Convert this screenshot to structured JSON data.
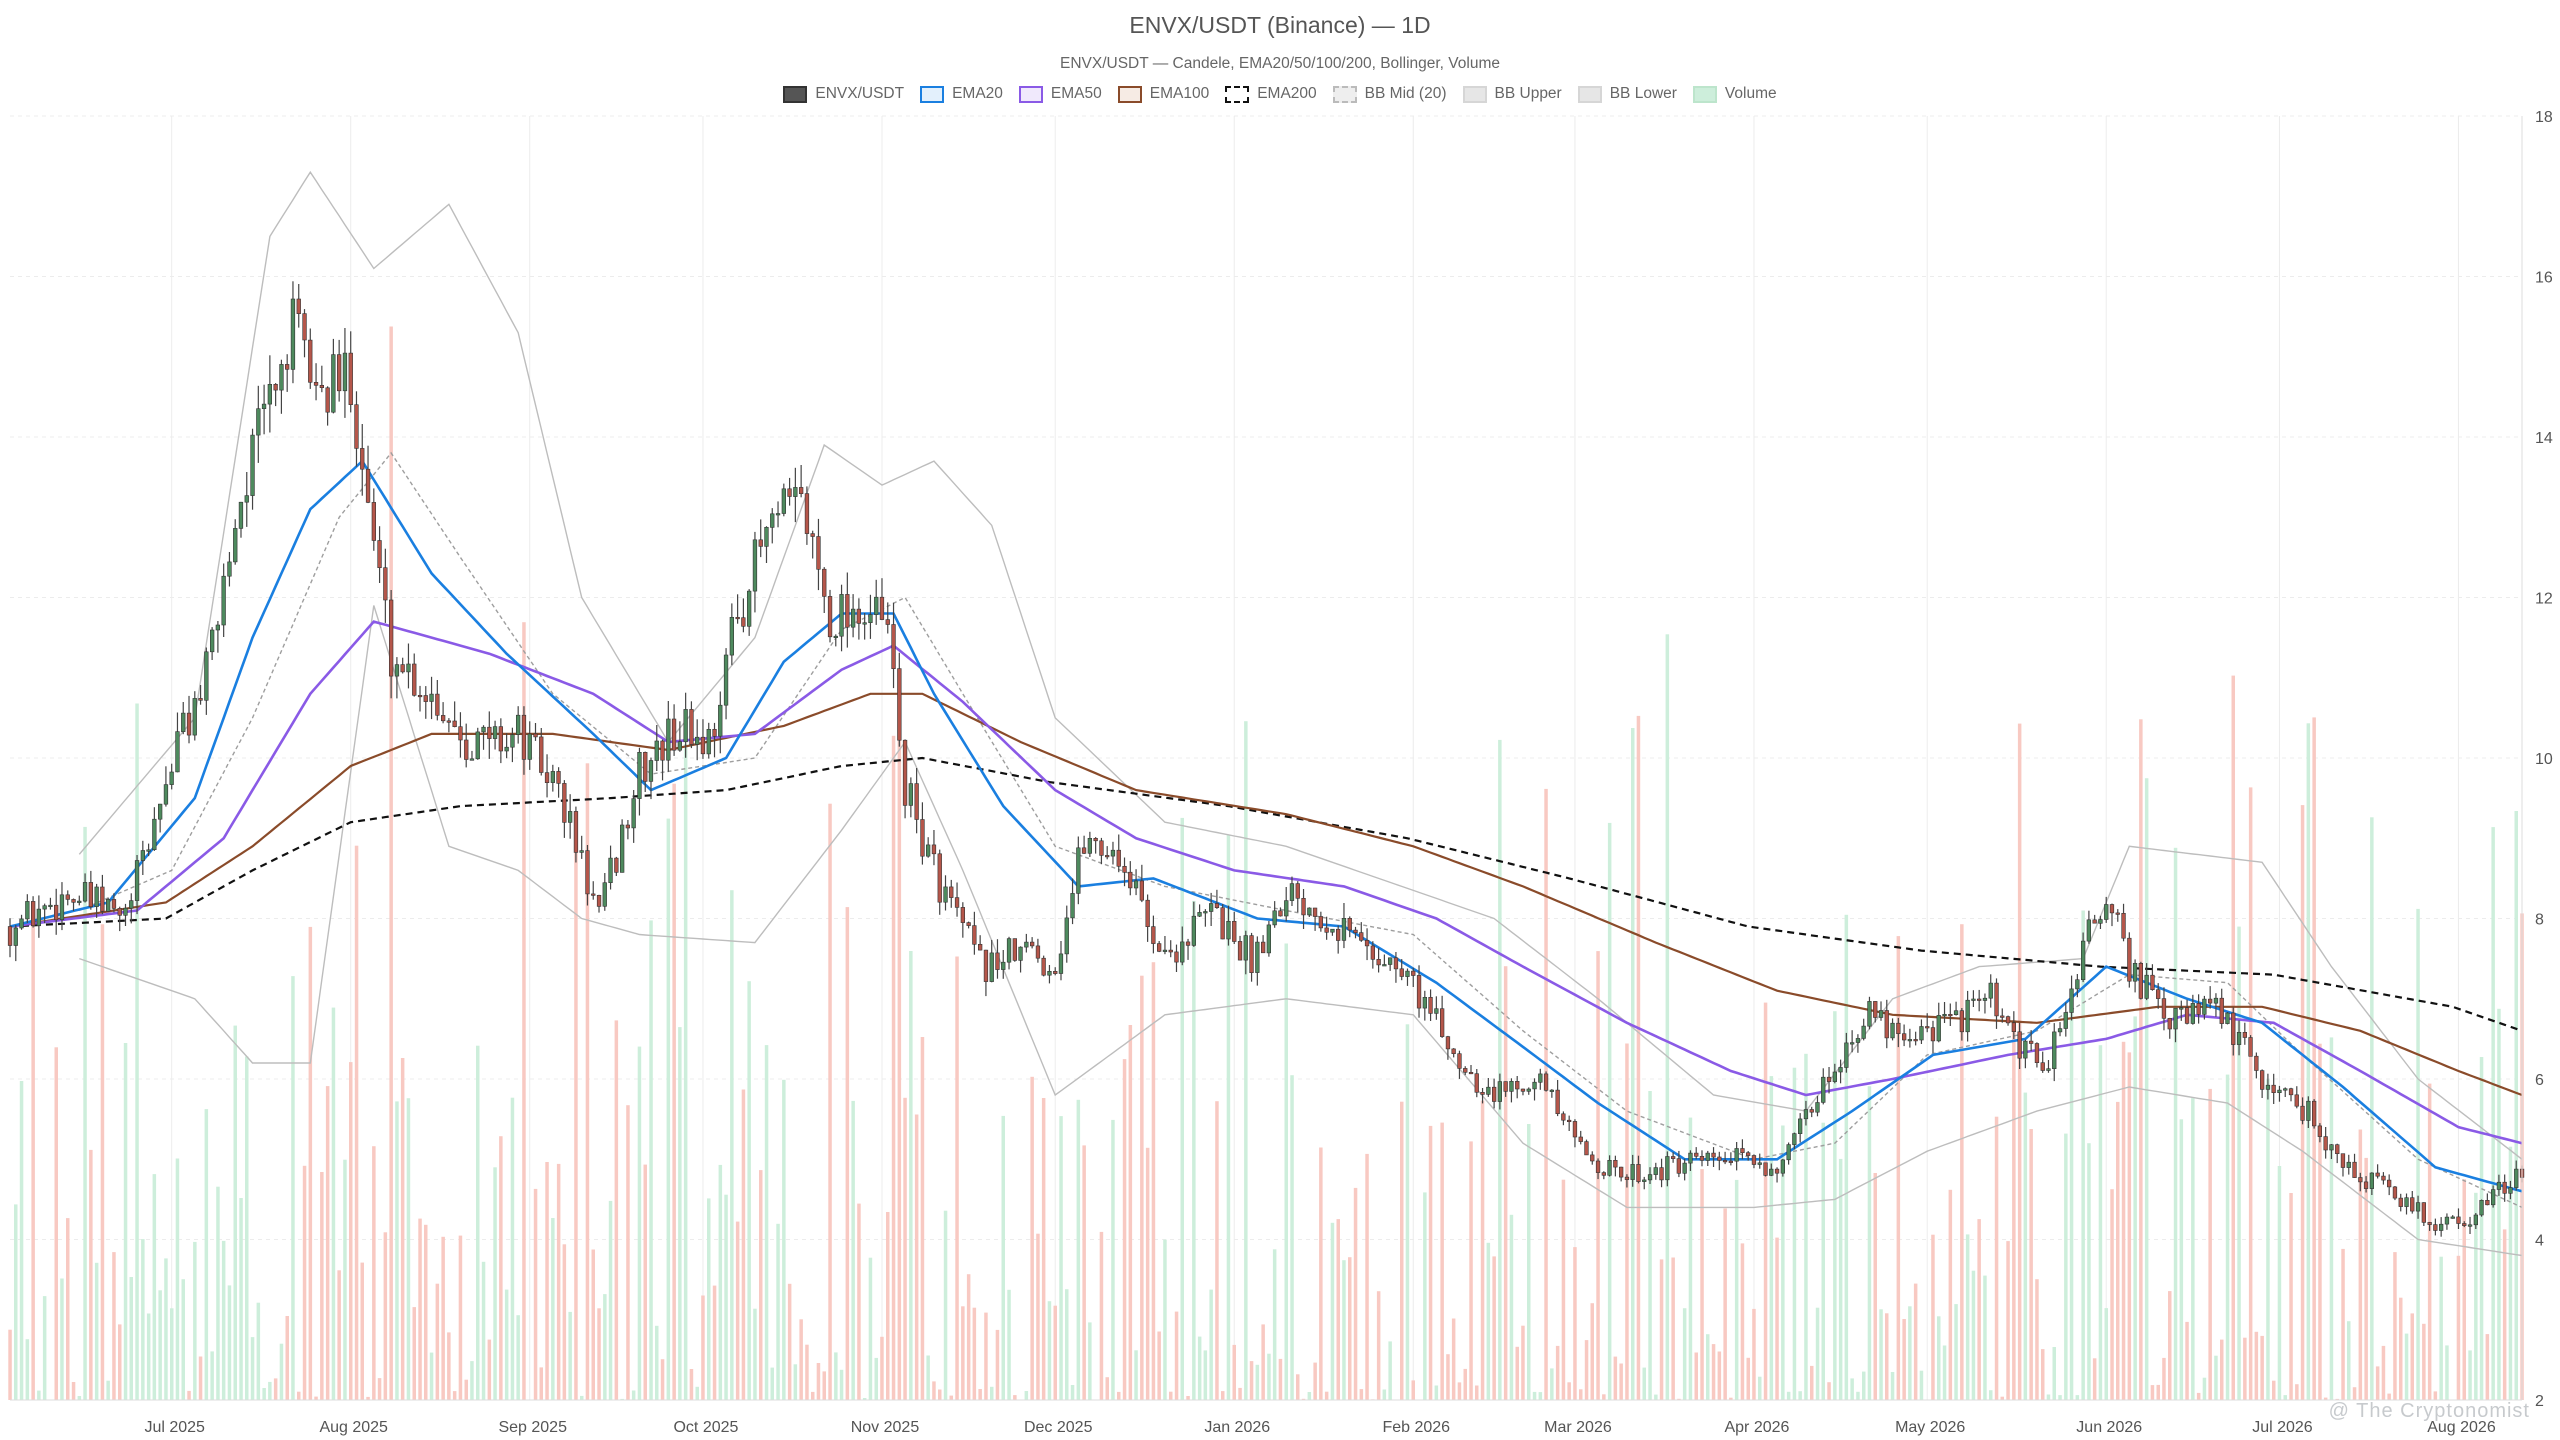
{
  "chart_data": {
    "type": "candlestick",
    "title": "ENVX/USDT (Binance) — 1D",
    "subtitle": "ENVX/USDT — Candele, EMA20/50/100/200, Bollinger, Volume",
    "ylim": [
      2,
      18
    ],
    "y_ticks": [
      "2",
      "4",
      "6",
      "8",
      "10",
      "12",
      "14",
      "16",
      "18"
    ],
    "x_ticks": [
      "Jul 2025",
      "Aug 2025",
      "Sep 2025",
      "Oct 2025",
      "Nov 2025",
      "Dec 2025",
      "Jan 2026",
      "Feb 2026",
      "Mar 2026",
      "Apr 2026",
      "May 2026",
      "Jun 2026",
      "Jul 2026",
      "Aug 2026"
    ],
    "x_range": [
      "2025-06-03",
      "2026-08-12"
    ],
    "grid": true,
    "legend_position": "top-center",
    "legend": [
      {
        "key": "candles",
        "label": "ENVX/USDT"
      },
      {
        "key": "ema20",
        "label": "EMA20"
      },
      {
        "key": "ema50",
        "label": "EMA50"
      },
      {
        "key": "ema100",
        "label": "EMA100"
      },
      {
        "key": "ema200",
        "label": "EMA200"
      },
      {
        "key": "bbmid",
        "label": "BB Mid (20)"
      },
      {
        "key": "bbup",
        "label": "BB Upper"
      },
      {
        "key": "bblow",
        "label": "BB Lower"
      },
      {
        "key": "volume",
        "label": "Volume"
      }
    ],
    "colors": {
      "up": "#4e8a5e",
      "down": "#b5564a",
      "ema20": "#1a7fe0",
      "ema50": "#8a5ae6",
      "ema100": "#8a4b2a",
      "ema200": "#111111",
      "bb": "#bdbdbd",
      "bbmid": "#9e9e9e",
      "vol_up": "#cdeedb",
      "vol_down": "#f8c9c2"
    },
    "price_anchors": [
      [
        "2025-06-03",
        7.9
      ],
      [
        "2025-06-13",
        8.3
      ],
      [
        "2025-06-23",
        8.0
      ],
      [
        "2025-06-28",
        9.2
      ],
      [
        "2025-07-02",
        10.2
      ],
      [
        "2025-07-07",
        11.0
      ],
      [
        "2025-07-12",
        13.0
      ],
      [
        "2025-07-17",
        14.3
      ],
      [
        "2025-07-22",
        15.3
      ],
      [
        "2025-07-27",
        14.5
      ],
      [
        "2025-08-01",
        14.8
      ],
      [
        "2025-08-04",
        13.2
      ],
      [
        "2025-08-08",
        11.3
      ],
      [
        "2025-08-15",
        10.8
      ],
      [
        "2025-08-22",
        10.2
      ],
      [
        "2025-08-30",
        10.3
      ],
      [
        "2025-09-06",
        9.6
      ],
      [
        "2025-09-13",
        8.0
      ],
      [
        "2025-09-20",
        9.8
      ],
      [
        "2025-09-27",
        10.4
      ],
      [
        "2025-10-02",
        10.2
      ],
      [
        "2025-10-07",
        11.8
      ],
      [
        "2025-10-12",
        12.8
      ],
      [
        "2025-10-18",
        13.2
      ],
      [
        "2025-10-23",
        11.8
      ],
      [
        "2025-10-28",
        11.9
      ],
      [
        "2025-11-02",
        11.6
      ],
      [
        "2025-11-05",
        9.6
      ],
      [
        "2025-11-10",
        8.6
      ],
      [
        "2025-11-18",
        7.4
      ],
      [
        "2025-11-26",
        7.6
      ],
      [
        "2025-12-01",
        7.4
      ],
      [
        "2025-12-06",
        9.0
      ],
      [
        "2025-12-12",
        8.8
      ],
      [
        "2025-12-20",
        7.5
      ],
      [
        "2025-12-28",
        8.1
      ],
      [
        "2026-01-04",
        7.5
      ],
      [
        "2026-01-10",
        8.4
      ],
      [
        "2026-01-18",
        8.0
      ],
      [
        "2026-01-25",
        7.6
      ],
      [
        "2026-02-01",
        7.2
      ],
      [
        "2026-02-08",
        6.3
      ],
      [
        "2026-02-15",
        5.8
      ],
      [
        "2026-02-22",
        6.1
      ],
      [
        "2026-03-01",
        5.2
      ],
      [
        "2026-03-08",
        4.8
      ],
      [
        "2026-03-18",
        4.9
      ],
      [
        "2026-03-28",
        5.0
      ],
      [
        "2026-04-06",
        4.9
      ],
      [
        "2026-04-12",
        5.8
      ],
      [
        "2026-04-20",
        6.8
      ],
      [
        "2026-04-28",
        6.6
      ],
      [
        "2026-05-05",
        6.7
      ],
      [
        "2026-05-12",
        7.0
      ],
      [
        "2026-05-16",
        6.4
      ],
      [
        "2026-05-22",
        6.2
      ],
      [
        "2026-05-28",
        7.6
      ],
      [
        "2026-06-01",
        8.3
      ],
      [
        "2026-06-05",
        7.4
      ],
      [
        "2026-06-12",
        6.7
      ],
      [
        "2026-06-20",
        6.9
      ],
      [
        "2026-06-28",
        6.0
      ],
      [
        "2026-07-06",
        5.6
      ],
      [
        "2026-07-12",
        4.9
      ],
      [
        "2026-07-20",
        4.6
      ],
      [
        "2026-07-28",
        4.2
      ],
      [
        "2026-08-04",
        4.3
      ],
      [
        "2026-08-12",
        4.9
      ]
    ],
    "ema20": [
      [
        "2025-06-03",
        7.9
      ],
      [
        "2025-06-20",
        8.2
      ],
      [
        "2025-07-05",
        9.5
      ],
      [
        "2025-07-15",
        11.5
      ],
      [
        "2025-07-25",
        13.1
      ],
      [
        "2025-08-03",
        13.7
      ],
      [
        "2025-08-15",
        12.3
      ],
      [
        "2025-08-28",
        11.3
      ],
      [
        "2025-09-12",
        10.3
      ],
      [
        "2025-09-22",
        9.6
      ],
      [
        "2025-10-05",
        10.0
      ],
      [
        "2025-10-15",
        11.2
      ],
      [
        "2025-10-25",
        11.8
      ],
      [
        "2025-11-03",
        11.8
      ],
      [
        "2025-11-10",
        10.8
      ],
      [
        "2025-11-22",
        9.4
      ],
      [
        "2025-12-05",
        8.4
      ],
      [
        "2025-12-18",
        8.5
      ],
      [
        "2026-01-05",
        8.0
      ],
      [
        "2026-01-20",
        7.9
      ],
      [
        "2026-02-05",
        7.2
      ],
      [
        "2026-02-20",
        6.4
      ],
      [
        "2026-03-05",
        5.7
      ],
      [
        "2026-03-20",
        5.0
      ],
      [
        "2026-04-05",
        5.0
      ],
      [
        "2026-04-18",
        5.6
      ],
      [
        "2026-05-02",
        6.3
      ],
      [
        "2026-05-18",
        6.5
      ],
      [
        "2026-06-01",
        7.4
      ],
      [
        "2026-06-15",
        7.0
      ],
      [
        "2026-06-28",
        6.7
      ],
      [
        "2026-07-12",
        5.9
      ],
      [
        "2026-07-28",
        4.9
      ],
      [
        "2026-08-12",
        4.6
      ]
    ],
    "ema50": [
      [
        "2025-06-03",
        7.9
      ],
      [
        "2025-06-25",
        8.1
      ],
      [
        "2025-07-10",
        9.0
      ],
      [
        "2025-07-25",
        10.8
      ],
      [
        "2025-08-05",
        11.7
      ],
      [
        "2025-08-25",
        11.3
      ],
      [
        "2025-09-12",
        10.8
      ],
      [
        "2025-09-25",
        10.2
      ],
      [
        "2025-10-10",
        10.3
      ],
      [
        "2025-10-25",
        11.1
      ],
      [
        "2025-11-03",
        11.4
      ],
      [
        "2025-11-15",
        10.7
      ],
      [
        "2025-12-01",
        9.6
      ],
      [
        "2025-12-15",
        9.0
      ],
      [
        "2026-01-01",
        8.6
      ],
      [
        "2026-01-20",
        8.4
      ],
      [
        "2026-02-05",
        8.0
      ],
      [
        "2026-02-20",
        7.4
      ],
      [
        "2026-03-10",
        6.7
      ],
      [
        "2026-03-28",
        6.1
      ],
      [
        "2026-04-10",
        5.8
      ],
      [
        "2026-04-25",
        6.0
      ],
      [
        "2026-05-15",
        6.3
      ],
      [
        "2026-06-01",
        6.5
      ],
      [
        "2026-06-15",
        6.8
      ],
      [
        "2026-06-30",
        6.7
      ],
      [
        "2026-07-15",
        6.1
      ],
      [
        "2026-08-01",
        5.4
      ],
      [
        "2026-08-12",
        5.2
      ]
    ],
    "ema100": [
      [
        "2025-06-03",
        7.9
      ],
      [
        "2025-06-30",
        8.2
      ],
      [
        "2025-07-15",
        8.9
      ],
      [
        "2025-08-01",
        9.9
      ],
      [
        "2025-08-15",
        10.3
      ],
      [
        "2025-09-05",
        10.3
      ],
      [
        "2025-09-25",
        10.1
      ],
      [
        "2025-10-15",
        10.4
      ],
      [
        "2025-10-30",
        10.8
      ],
      [
        "2025-11-08",
        10.8
      ],
      [
        "2025-11-25",
        10.2
      ],
      [
        "2025-12-15",
        9.6
      ],
      [
        "2026-01-10",
        9.3
      ],
      [
        "2026-02-01",
        8.9
      ],
      [
        "2026-02-20",
        8.4
      ],
      [
        "2026-03-15",
        7.7
      ],
      [
        "2026-04-05",
        7.1
      ],
      [
        "2026-04-25",
        6.8
      ],
      [
        "2026-05-20",
        6.7
      ],
      [
        "2026-06-10",
        6.9
      ],
      [
        "2026-06-28",
        6.9
      ],
      [
        "2026-07-15",
        6.6
      ],
      [
        "2026-08-01",
        6.1
      ],
      [
        "2026-08-12",
        5.8
      ]
    ],
    "ema200": [
      [
        "2025-06-03",
        7.9
      ],
      [
        "2025-06-30",
        8.0
      ],
      [
        "2025-07-15",
        8.6
      ],
      [
        "2025-08-01",
        9.2
      ],
      [
        "2025-08-20",
        9.4
      ],
      [
        "2025-09-15",
        9.5
      ],
      [
        "2025-10-05",
        9.6
      ],
      [
        "2025-10-25",
        9.9
      ],
      [
        "2025-11-08",
        10.0
      ],
      [
        "2025-11-30",
        9.7
      ],
      [
        "2025-12-31",
        9.4
      ],
      [
        "2026-01-31",
        9.0
      ],
      [
        "2026-02-28",
        8.5
      ],
      [
        "2026-03-31",
        7.9
      ],
      [
        "2026-04-30",
        7.6
      ],
      [
        "2026-05-31",
        7.4
      ],
      [
        "2026-06-30",
        7.3
      ],
      [
        "2026-07-31",
        6.9
      ],
      [
        "2026-08-12",
        6.6
      ]
    ],
    "bb_mid": [
      [
        "2025-06-15",
        8.1
      ],
      [
        "2025-07-01",
        8.6
      ],
      [
        "2025-07-15",
        10.5
      ],
      [
        "2025-07-30",
        13.0
      ],
      [
        "2025-08-08",
        13.8
      ],
      [
        "2025-08-20",
        12.5
      ],
      [
        "2025-09-05",
        10.8
      ],
      [
        "2025-09-22",
        9.8
      ],
      [
        "2025-10-10",
        10.0
      ],
      [
        "2025-10-25",
        11.6
      ],
      [
        "2025-11-05",
        12.0
      ],
      [
        "2025-11-15",
        10.8
      ],
      [
        "2025-12-01",
        8.9
      ],
      [
        "2025-12-20",
        8.4
      ],
      [
        "2026-01-10",
        8.1
      ],
      [
        "2026-02-01",
        7.8
      ],
      [
        "2026-02-20",
        6.6
      ],
      [
        "2026-03-10",
        5.6
      ],
      [
        "2026-04-01",
        5.0
      ],
      [
        "2026-04-15",
        5.2
      ],
      [
        "2026-05-01",
        6.3
      ],
      [
        "2026-05-20",
        6.6
      ],
      [
        "2026-06-05",
        7.3
      ],
      [
        "2026-06-22",
        7.2
      ],
      [
        "2026-07-05",
        6.3
      ],
      [
        "2026-07-25",
        5.0
      ],
      [
        "2026-08-12",
        4.4
      ]
    ],
    "bb_upper": [
      [
        "2025-06-15",
        8.8
      ],
      [
        "2025-07-05",
        10.5
      ],
      [
        "2025-07-18",
        16.5
      ],
      [
        "2025-07-25",
        17.3
      ],
      [
        "2025-08-05",
        16.1
      ],
      [
        "2025-08-18",
        16.9
      ],
      [
        "2025-08-30",
        15.3
      ],
      [
        "2025-09-10",
        12.0
      ],
      [
        "2025-09-25",
        10.2
      ],
      [
        "2025-10-10",
        11.5
      ],
      [
        "2025-10-22",
        13.9
      ],
      [
        "2025-11-01",
        13.4
      ],
      [
        "2025-11-10",
        13.7
      ],
      [
        "2025-11-20",
        12.9
      ],
      [
        "2025-12-01",
        10.5
      ],
      [
        "2025-12-20",
        9.2
      ],
      [
        "2026-01-10",
        8.9
      ],
      [
        "2026-01-30",
        8.4
      ],
      [
        "2026-02-15",
        8.0
      ],
      [
        "2026-03-05",
        7.0
      ],
      [
        "2026-03-25",
        5.8
      ],
      [
        "2026-04-10",
        5.6
      ],
      [
        "2026-04-25",
        7.0
      ],
      [
        "2026-05-10",
        7.4
      ],
      [
        "2026-05-28",
        7.5
      ],
      [
        "2026-06-05",
        8.9
      ],
      [
        "2026-06-28",
        8.7
      ],
      [
        "2026-07-10",
        7.4
      ],
      [
        "2026-07-25",
        6.0
      ],
      [
        "2026-08-12",
        5.0
      ]
    ],
    "bb_lower": [
      [
        "2025-06-15",
        7.5
      ],
      [
        "2025-07-05",
        7.0
      ],
      [
        "2025-07-15",
        6.2
      ],
      [
        "2025-07-25",
        6.2
      ],
      [
        "2025-08-05",
        11.9
      ],
      [
        "2025-08-18",
        8.9
      ],
      [
        "2025-08-30",
        8.6
      ],
      [
        "2025-09-10",
        8.0
      ],
      [
        "2025-09-20",
        7.8
      ],
      [
        "2025-10-10",
        7.7
      ],
      [
        "2025-10-25",
        9.1
      ],
      [
        "2025-11-05",
        10.2
      ],
      [
        "2025-11-15",
        8.6
      ],
      [
        "2025-12-01",
        5.8
      ],
      [
        "2025-12-20",
        6.8
      ],
      [
        "2026-01-10",
        7.0
      ],
      [
        "2026-02-01",
        6.8
      ],
      [
        "2026-02-20",
        5.2
      ],
      [
        "2026-03-10",
        4.4
      ],
      [
        "2026-04-01",
        4.4
      ],
      [
        "2026-04-15",
        4.5
      ],
      [
        "2026-05-01",
        5.1
      ],
      [
        "2026-05-20",
        5.6
      ],
      [
        "2026-06-05",
        5.9
      ],
      [
        "2026-06-22",
        5.7
      ],
      [
        "2026-07-05",
        5.1
      ],
      [
        "2026-07-25",
        4.0
      ],
      [
        "2026-08-12",
        3.8
      ]
    ],
    "volume_profile_max": 17.4
  },
  "watermark": "@ The Cryptonomist"
}
